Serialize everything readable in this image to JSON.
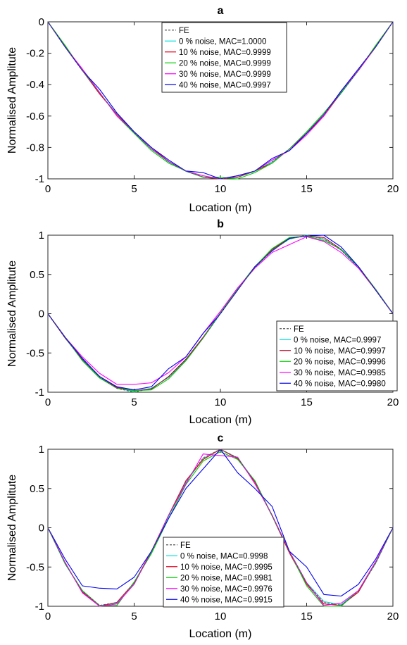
{
  "chart_data": [
    {
      "type": "line",
      "title": "a",
      "xlabel": "Location (m)",
      "ylabel": "Normalised Amplitute",
      "xlim": [
        0,
        20
      ],
      "ylim": [
        -1,
        0
      ],
      "xticks": [
        0,
        5,
        10,
        15,
        20
      ],
      "yticks": [
        0,
        -0.2,
        -0.4,
        -0.6,
        -0.8,
        -1
      ],
      "xtick_labels": [
        "0",
        "5",
        "10",
        "15",
        "20"
      ],
      "ytick_labels": [
        "0",
        "-0.2",
        "-0.4",
        "-0.6",
        "-0.8",
        "-1"
      ],
      "legend": "top-center",
      "x": [
        0,
        1,
        2,
        3,
        4,
        5,
        6,
        7,
        8,
        9,
        10,
        11,
        12,
        13,
        14,
        15,
        16,
        17,
        18,
        19,
        20
      ],
      "series": [
        {
          "name": "FE",
          "color": "#555555",
          "dash": true,
          "values": [
            0,
            -0.156,
            -0.309,
            -0.454,
            -0.588,
            -0.707,
            -0.809,
            -0.891,
            -0.951,
            -0.988,
            -1.0,
            -0.988,
            -0.951,
            -0.891,
            -0.809,
            -0.707,
            -0.588,
            -0.454,
            -0.309,
            -0.156,
            0
          ]
        },
        {
          "name": "0 % noise, MAC=1.0000",
          "color": "#00e0e0",
          "values": [
            0,
            -0.157,
            -0.31,
            -0.455,
            -0.589,
            -0.708,
            -0.81,
            -0.892,
            -0.952,
            -0.989,
            -1.0,
            -0.989,
            -0.952,
            -0.892,
            -0.81,
            -0.708,
            -0.589,
            -0.455,
            -0.31,
            -0.157,
            0
          ]
        },
        {
          "name": "10 % noise, MAC=0.9999",
          "color": "#e8001c",
          "values": [
            0,
            -0.16,
            -0.31,
            -0.46,
            -0.59,
            -0.7,
            -0.8,
            -0.89,
            -0.95,
            -0.99,
            -1.0,
            -0.99,
            -0.95,
            -0.9,
            -0.81,
            -0.71,
            -0.6,
            -0.45,
            -0.31,
            -0.16,
            0
          ]
        },
        {
          "name": "20 % noise, MAC=0.9999",
          "color": "#00cc00",
          "values": [
            0,
            -0.15,
            -0.31,
            -0.45,
            -0.6,
            -0.71,
            -0.82,
            -0.9,
            -0.95,
            -0.99,
            -0.99,
            -1.0,
            -0.96,
            -0.9,
            -0.81,
            -0.7,
            -0.58,
            -0.45,
            -0.31,
            -0.15,
            0
          ]
        },
        {
          "name": "30 % noise, MAC=0.9999",
          "color": "#ff00ff",
          "values": [
            0,
            -0.16,
            -0.3,
            -0.45,
            -0.6,
            -0.7,
            -0.81,
            -0.89,
            -0.95,
            -0.98,
            -1.0,
            -0.98,
            -0.95,
            -0.88,
            -0.82,
            -0.72,
            -0.6,
            -0.44,
            -0.31,
            -0.16,
            0
          ]
        },
        {
          "name": "40 % noise, MAC=0.9997",
          "color": "#0000ee",
          "values": [
            0,
            -0.16,
            -0.31,
            -0.43,
            -0.58,
            -0.7,
            -0.8,
            -0.88,
            -0.95,
            -0.96,
            -1.0,
            -0.98,
            -0.95,
            -0.87,
            -0.82,
            -0.71,
            -0.59,
            -0.44,
            -0.3,
            -0.16,
            0
          ]
        }
      ]
    },
    {
      "type": "line",
      "title": "b",
      "xlabel": "Location (m)",
      "ylabel": "Normalised Amplitute",
      "xlim": [
        0,
        20
      ],
      "ylim": [
        -1,
        1
      ],
      "xticks": [
        0,
        5,
        10,
        15,
        20
      ],
      "yticks": [
        1,
        0.5,
        0,
        -0.5,
        -1
      ],
      "xtick_labels": [
        "0",
        "5",
        "10",
        "15",
        "20"
      ],
      "ytick_labels": [
        "1",
        "0.5",
        "0",
        "-0.5",
        "-1"
      ],
      "legend": "bottom-right",
      "x": [
        0,
        1,
        2,
        3,
        4,
        5,
        6,
        7,
        8,
        9,
        10,
        11,
        12,
        13,
        14,
        15,
        16,
        17,
        18,
        19,
        20
      ],
      "series": [
        {
          "name": "FE",
          "color": "#555555",
          "dash": true,
          "values": [
            0,
            -0.309,
            -0.588,
            -0.809,
            -0.951,
            -1.0,
            -0.951,
            -0.809,
            -0.588,
            -0.309,
            0,
            0.309,
            0.588,
            0.809,
            0.951,
            1.0,
            0.951,
            0.809,
            0.588,
            0.309,
            0
          ]
        },
        {
          "name": "0 % noise, MAC=0.9997",
          "color": "#00e0e0",
          "values": [
            0,
            -0.31,
            -0.59,
            -0.81,
            -0.95,
            -0.99,
            -0.95,
            -0.81,
            -0.59,
            -0.31,
            0,
            0.31,
            0.59,
            0.81,
            0.95,
            1.0,
            0.95,
            0.81,
            0.59,
            0.31,
            0
          ]
        },
        {
          "name": "10 % noise, MAC=0.9997",
          "color": "#b00020",
          "values": [
            0,
            -0.31,
            -0.58,
            -0.8,
            -0.94,
            -0.98,
            -0.96,
            -0.8,
            -0.58,
            -0.3,
            0.01,
            0.32,
            0.6,
            0.82,
            0.96,
            0.99,
            0.97,
            0.82,
            0.6,
            0.31,
            0
          ]
        },
        {
          "name": "20 % noise, MAC=0.9996",
          "color": "#00cc00",
          "values": [
            0,
            -0.3,
            -0.6,
            -0.82,
            -0.95,
            -0.98,
            -0.97,
            -0.83,
            -0.6,
            -0.31,
            0.01,
            0.32,
            0.6,
            0.83,
            0.97,
            0.99,
            0.93,
            0.82,
            0.6,
            0.31,
            0
          ]
        },
        {
          "name": "30 % noise, MAC=0.9985",
          "color": "#ff00ff",
          "values": [
            0,
            -0.3,
            -0.55,
            -0.76,
            -0.9,
            -0.9,
            -0.88,
            -0.75,
            -0.55,
            -0.25,
            0.03,
            0.33,
            0.58,
            0.78,
            0.88,
            0.98,
            0.92,
            0.78,
            0.58,
            0.3,
            0
          ]
        },
        {
          "name": "40 % noise, MAC=0.9980",
          "color": "#0000ee",
          "values": [
            0,
            -0.3,
            -0.57,
            -0.8,
            -0.93,
            -0.97,
            -0.93,
            -0.7,
            -0.55,
            -0.25,
            0,
            0.3,
            0.6,
            0.8,
            0.96,
            0.99,
            1.0,
            0.85,
            0.6,
            0.3,
            0
          ]
        }
      ]
    },
    {
      "type": "line",
      "title": "c",
      "xlabel": "Location (m)",
      "ylabel": "Normalised Amplitute",
      "xlim": [
        0,
        20
      ],
      "ylim": [
        -1,
        1
      ],
      "xticks": [
        0,
        5,
        10,
        15,
        20
      ],
      "yticks": [
        1,
        0.5,
        0,
        -0.5,
        -1
      ],
      "xtick_labels": [
        "0",
        "5",
        "10",
        "15",
        "20"
      ],
      "ytick_labels": [
        "1",
        "0.5",
        "0",
        "-0.5",
        "-1"
      ],
      "legend": "bottom-center",
      "x": [
        0,
        1,
        2,
        3,
        4,
        5,
        6,
        7,
        8,
        9,
        10,
        11,
        12,
        13,
        14,
        15,
        16,
        17,
        18,
        19,
        20
      ],
      "series": [
        {
          "name": "FE",
          "color": "#555555",
          "dash": true,
          "values": [
            0,
            -0.454,
            -0.809,
            -0.988,
            -0.951,
            -0.707,
            -0.309,
            0.156,
            0.588,
            0.891,
            1.0,
            0.891,
            0.588,
            0.156,
            -0.309,
            -0.707,
            -0.951,
            -0.988,
            -0.809,
            -0.454,
            0
          ]
        },
        {
          "name": "0 % noise, MAC=0.9998",
          "color": "#00e0e0",
          "values": [
            0,
            -0.46,
            -0.81,
            -0.99,
            -0.96,
            -0.71,
            -0.31,
            0.15,
            0.58,
            0.88,
            1.0,
            0.89,
            0.59,
            0.16,
            -0.3,
            -0.7,
            -0.94,
            -0.98,
            -0.8,
            -0.45,
            0
          ]
        },
        {
          "name": "10 % noise, MAC=0.9995",
          "color": "#e8001c",
          "values": [
            0,
            -0.45,
            -0.82,
            -1.0,
            -0.95,
            -0.7,
            -0.3,
            0.16,
            0.6,
            0.87,
            1.0,
            0.88,
            0.58,
            0.15,
            -0.32,
            -0.72,
            -0.97,
            -0.99,
            -0.82,
            -0.44,
            0
          ]
        },
        {
          "name": "20 % noise, MAC=0.9981",
          "color": "#00cc00",
          "values": [
            0,
            -0.46,
            -0.8,
            -0.99,
            -0.99,
            -0.69,
            -0.33,
            0.12,
            0.55,
            0.85,
            0.97,
            0.87,
            0.6,
            0.15,
            -0.3,
            -0.74,
            -1.0,
            -1.0,
            -0.8,
            -0.45,
            0
          ]
        },
        {
          "name": "30 % noise, MAC=0.9976",
          "color": "#ff00ff",
          "values": [
            0,
            -0.44,
            -0.83,
            -1.0,
            -0.97,
            -0.72,
            -0.3,
            0.16,
            0.56,
            0.94,
            0.92,
            0.9,
            0.56,
            0.16,
            -0.3,
            -0.7,
            -0.99,
            -0.96,
            -0.8,
            -0.43,
            0
          ]
        },
        {
          "name": "40 % noise, MAC=0.9915",
          "color": "#0000ee",
          "values": [
            0,
            -0.4,
            -0.74,
            -0.77,
            -0.78,
            -0.63,
            -0.3,
            0.12,
            0.5,
            0.75,
            1.0,
            0.7,
            0.5,
            0.27,
            -0.3,
            -0.5,
            -0.85,
            -0.87,
            -0.72,
            -0.4,
            0
          ]
        }
      ]
    }
  ]
}
